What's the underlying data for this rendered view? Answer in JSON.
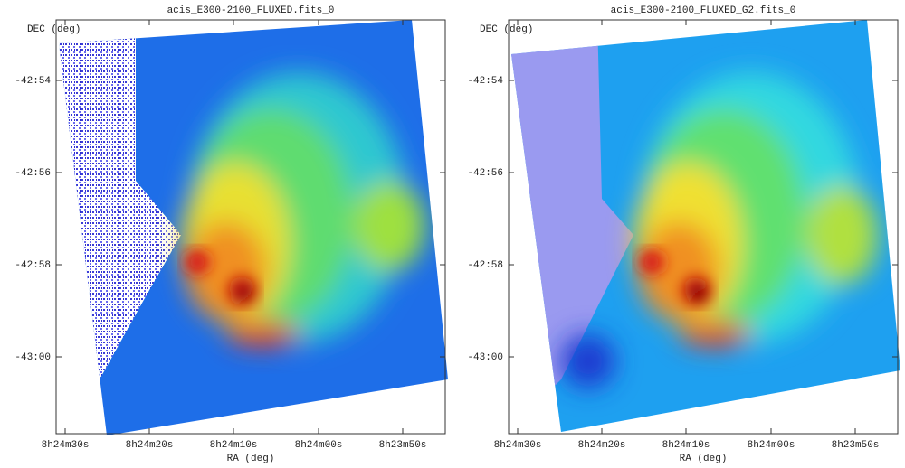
{
  "panels": [
    {
      "title": "acis_E300-2100_FLUXED.fits_0",
      "y_label": "DEC (deg)",
      "x_label": "RA (deg)",
      "yticks": [
        "-42:54",
        "-42:56",
        "-42:58",
        "-43:00"
      ],
      "xticks": [
        "8h24m30s",
        "8h24m20s",
        "8h24m10s",
        "8h24m00s",
        "8h23m50s"
      ]
    },
    {
      "title": "acis_E300-2100_FLUXED_G2.fits_0",
      "y_label": "DEC (deg)",
      "x_label": "RA (deg)",
      "yticks": [
        "-42:54",
        "-42:56",
        "-42:58",
        "-43:00"
      ],
      "xticks": [
        "8h24m30s",
        "8h24m20s",
        "8h24m10s",
        "8h24m00s",
        "8h23m50s"
      ]
    }
  ]
}
